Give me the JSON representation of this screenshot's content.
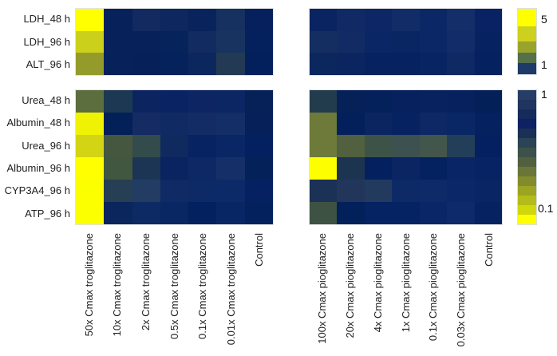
{
  "figure": {
    "background": "#ffffff",
    "text_color": "#1f1f1f"
  },
  "chart_data": {
    "type": "heatmap",
    "title": "",
    "legend_position": "right",
    "grid": false,
    "panels": [
      {
        "id": "troglitazone-upper",
        "rows": [
          "LDH_48 h",
          "LDH_96 h",
          "ALT_96 h"
        ],
        "columns": [
          "50x Cmax troglitazone",
          "10x Cmax troglitazone",
          "2x Cmax troglitazone",
          "0.5x Cmax troglitazone",
          "0.1x Cmax troglitazone",
          "0.01x Cmax troglitazone",
          "Control"
        ],
        "scale": {
          "min": 1,
          "max": 5
        },
        "values": [
          [
            5,
            1,
            1.2,
            1.1,
            1,
            1.3,
            1
          ],
          [
            4,
            1,
            1,
            1,
            1.2,
            1.3,
            1
          ],
          [
            3,
            1,
            1,
            1,
            1.1,
            1.5,
            1
          ]
        ],
        "cell_colors": [
          [
            "#ffff00",
            "#07215a",
            "#122a60",
            "#0e275e",
            "#09245c",
            "#16305f",
            "#05205c"
          ],
          [
            "#cbd01a",
            "#07215a",
            "#07225b",
            "#07235c",
            "#122b61",
            "#18335f",
            "#05215d"
          ],
          [
            "#959b2b",
            "#07215a",
            "#06215a",
            "#06225c",
            "#0c275e",
            "#223a54",
            "#04205c"
          ]
        ]
      },
      {
        "id": "pioglitazone-upper",
        "rows": [
          "LDH_48 h",
          "LDH_96 h",
          "ALT_96 h"
        ],
        "columns": [
          "100x Cmax pioglitazone",
          "20x Cmax pioglitazone",
          "4x Cmax pioglitazone",
          "1x Cmax pioglitazone",
          "0.1x Cmax pioglitazone",
          "0.03x Cmax pioglitazone",
          "Control"
        ],
        "scale": {
          "min": 1,
          "max": 5
        },
        "values": [
          [
            1,
            1.1,
            1.1,
            1.1,
            1.1,
            1.2,
            1
          ],
          [
            1.2,
            1.1,
            1.1,
            1,
            1.1,
            1.1,
            1
          ],
          [
            1.1,
            1,
            1,
            1,
            1,
            1.1,
            1
          ]
        ],
        "cell_colors": [
          [
            "#0a2462",
            "#112a66",
            "#0d2766",
            "#122c68",
            "#0c2766",
            "#142e6a",
            "#082264"
          ],
          [
            "#152e62",
            "#122b64",
            "#0a2664",
            "#092562",
            "#0c2766",
            "#112c68",
            "#062260"
          ],
          [
            "#0c275e",
            "#0a2560",
            "#062260",
            "#062260",
            "#082462",
            "#0e2964",
            "#052160"
          ]
        ]
      },
      {
        "id": "troglitazone-lower",
        "rows": [
          "Urea_48 h",
          "Albumin_48 h",
          "Urea_96 h",
          "Albumin_96 h",
          "CYP3A4_96 h",
          "ATP_96 h"
        ],
        "columns": [
          "50x Cmax troglitazone",
          "10x Cmax troglitazone",
          "2x Cmax troglitazone",
          "0.5x Cmax troglitazone",
          "0.1x Cmax troglitazone",
          "0.01x Cmax troglitazone",
          "Control"
        ],
        "scale": {
          "min": 0.1,
          "max": 1
        },
        "values": [
          [
            0.55,
            0.8,
            1,
            1,
            1,
            1,
            1
          ],
          [
            0.12,
            1,
            0.95,
            1,
            1,
            1,
            1
          ],
          [
            0.2,
            0.55,
            0.65,
            1,
            1,
            1,
            1
          ],
          [
            0.1,
            0.55,
            0.8,
            1,
            1,
            0.95,
            1
          ],
          [
            0.1,
            0.75,
            0.8,
            1,
            1,
            1,
            1
          ],
          [
            0.1,
            1,
            1,
            1,
            1,
            1,
            1
          ]
        ],
        "cell_colors": [
          [
            "#5c6e3e",
            "#1d3852",
            "#0c2560",
            "#0a2363",
            "#0d2663",
            "#0c2563",
            "#062058"
          ],
          [
            "#f0f204",
            "#032058",
            "#142c63",
            "#102a64",
            "#132c66",
            "#142e68",
            "#062159"
          ],
          [
            "#d2d414",
            "#46573f",
            "#344b4b",
            "#0e2a5e",
            "#072361",
            "#0a2664",
            "#042060"
          ],
          [
            "#ffff00",
            "#42573f",
            "#1c3555",
            "#0a2361",
            "#0e2765",
            "#152f68",
            "#052159"
          ],
          [
            "#fcff00",
            "#263f55",
            "#233c63",
            "#0f2a64",
            "#0e2a66",
            "#0c2968",
            "#062161"
          ],
          [
            "#fcff00",
            "#0a265c",
            "#0d2a64",
            "#082763",
            "#03215f",
            "#082664",
            "#03215c"
          ]
        ]
      },
      {
        "id": "pioglitazone-lower",
        "rows": [
          "Urea_48 h",
          "Albumin_48 h",
          "Urea_96 h",
          "Albumin_96 h",
          "CYP3A4_96 h",
          "ATP_96 h"
        ],
        "columns": [
          "100x Cmax pioglitazone",
          "20x Cmax pioglitazone",
          "4x Cmax pioglitazone",
          "1x Cmax pioglitazone",
          "0.1x Cmax pioglitazone",
          "0.03x Cmax pioglitazone",
          "Control"
        ],
        "scale": {
          "min": 0.1,
          "max": 1
        },
        "values": [
          [
            0.8,
            1,
            1,
            1,
            1,
            1,
            1
          ],
          [
            0.4,
            1,
            1,
            1,
            1,
            1,
            1
          ],
          [
            0.4,
            0.5,
            0.6,
            0.65,
            0.6,
            0.8,
            1
          ],
          [
            0.1,
            0.8,
            1,
            1,
            1,
            1,
            1
          ],
          [
            0.85,
            0.8,
            0.8,
            1,
            1,
            1,
            1
          ],
          [
            0.6,
            1,
            1,
            1,
            1,
            1,
            1
          ]
        ],
        "cell_colors": [
          [
            "#223c4e",
            "#062158",
            "#05215c",
            "#06215e",
            "#07225e",
            "#06215e",
            "#042059"
          ],
          [
            "#6d7a39",
            "#03205c",
            "#0a2560",
            "#062260",
            "#0d2864",
            "#0a2765",
            "#052160"
          ],
          [
            "#6d7a39",
            "#51603e",
            "#3e5347",
            "#3c5150",
            "#43564b",
            "#233e58",
            "#042060"
          ],
          [
            "#fdff00",
            "#1c3450",
            "#04205e",
            "#0a2562",
            "#052260",
            "#0a2566",
            "#082363"
          ],
          [
            "#1c3156",
            "#22365c",
            "#223a5e",
            "#0d2a66",
            "#0e2a68",
            "#0b2768",
            "#0a2564"
          ],
          [
            "#3d5243",
            "#02205a",
            "#052263",
            "#052363",
            "#0a2666",
            "#0f2a6a",
            "#062261"
          ]
        ]
      }
    ],
    "colorbars": [
      {
        "id": "upper-scale",
        "tick_labels": [
          "5",
          "1"
        ],
        "segments": [
          "#ffff00",
          "#cdd01e",
          "#9aa32c",
          "#55704a",
          "#1d3a68"
        ],
        "segment_heights": [
          23,
          19,
          14,
          14,
          14
        ]
      },
      {
        "id": "lower-scale",
        "tick_labels": [
          "1",
          "0.1"
        ],
        "segments": [
          "#263e66",
          "#20345f",
          "#172a5c",
          "#0d2163",
          "#1a3054",
          "#2c4355",
          "#3c5149",
          "#52603f",
          "#6a7637",
          "#838c2c",
          "#9ca522",
          "#b4bc19",
          "#d0d70d",
          "#ffff00"
        ],
        "segment_heights": null
      }
    ]
  }
}
